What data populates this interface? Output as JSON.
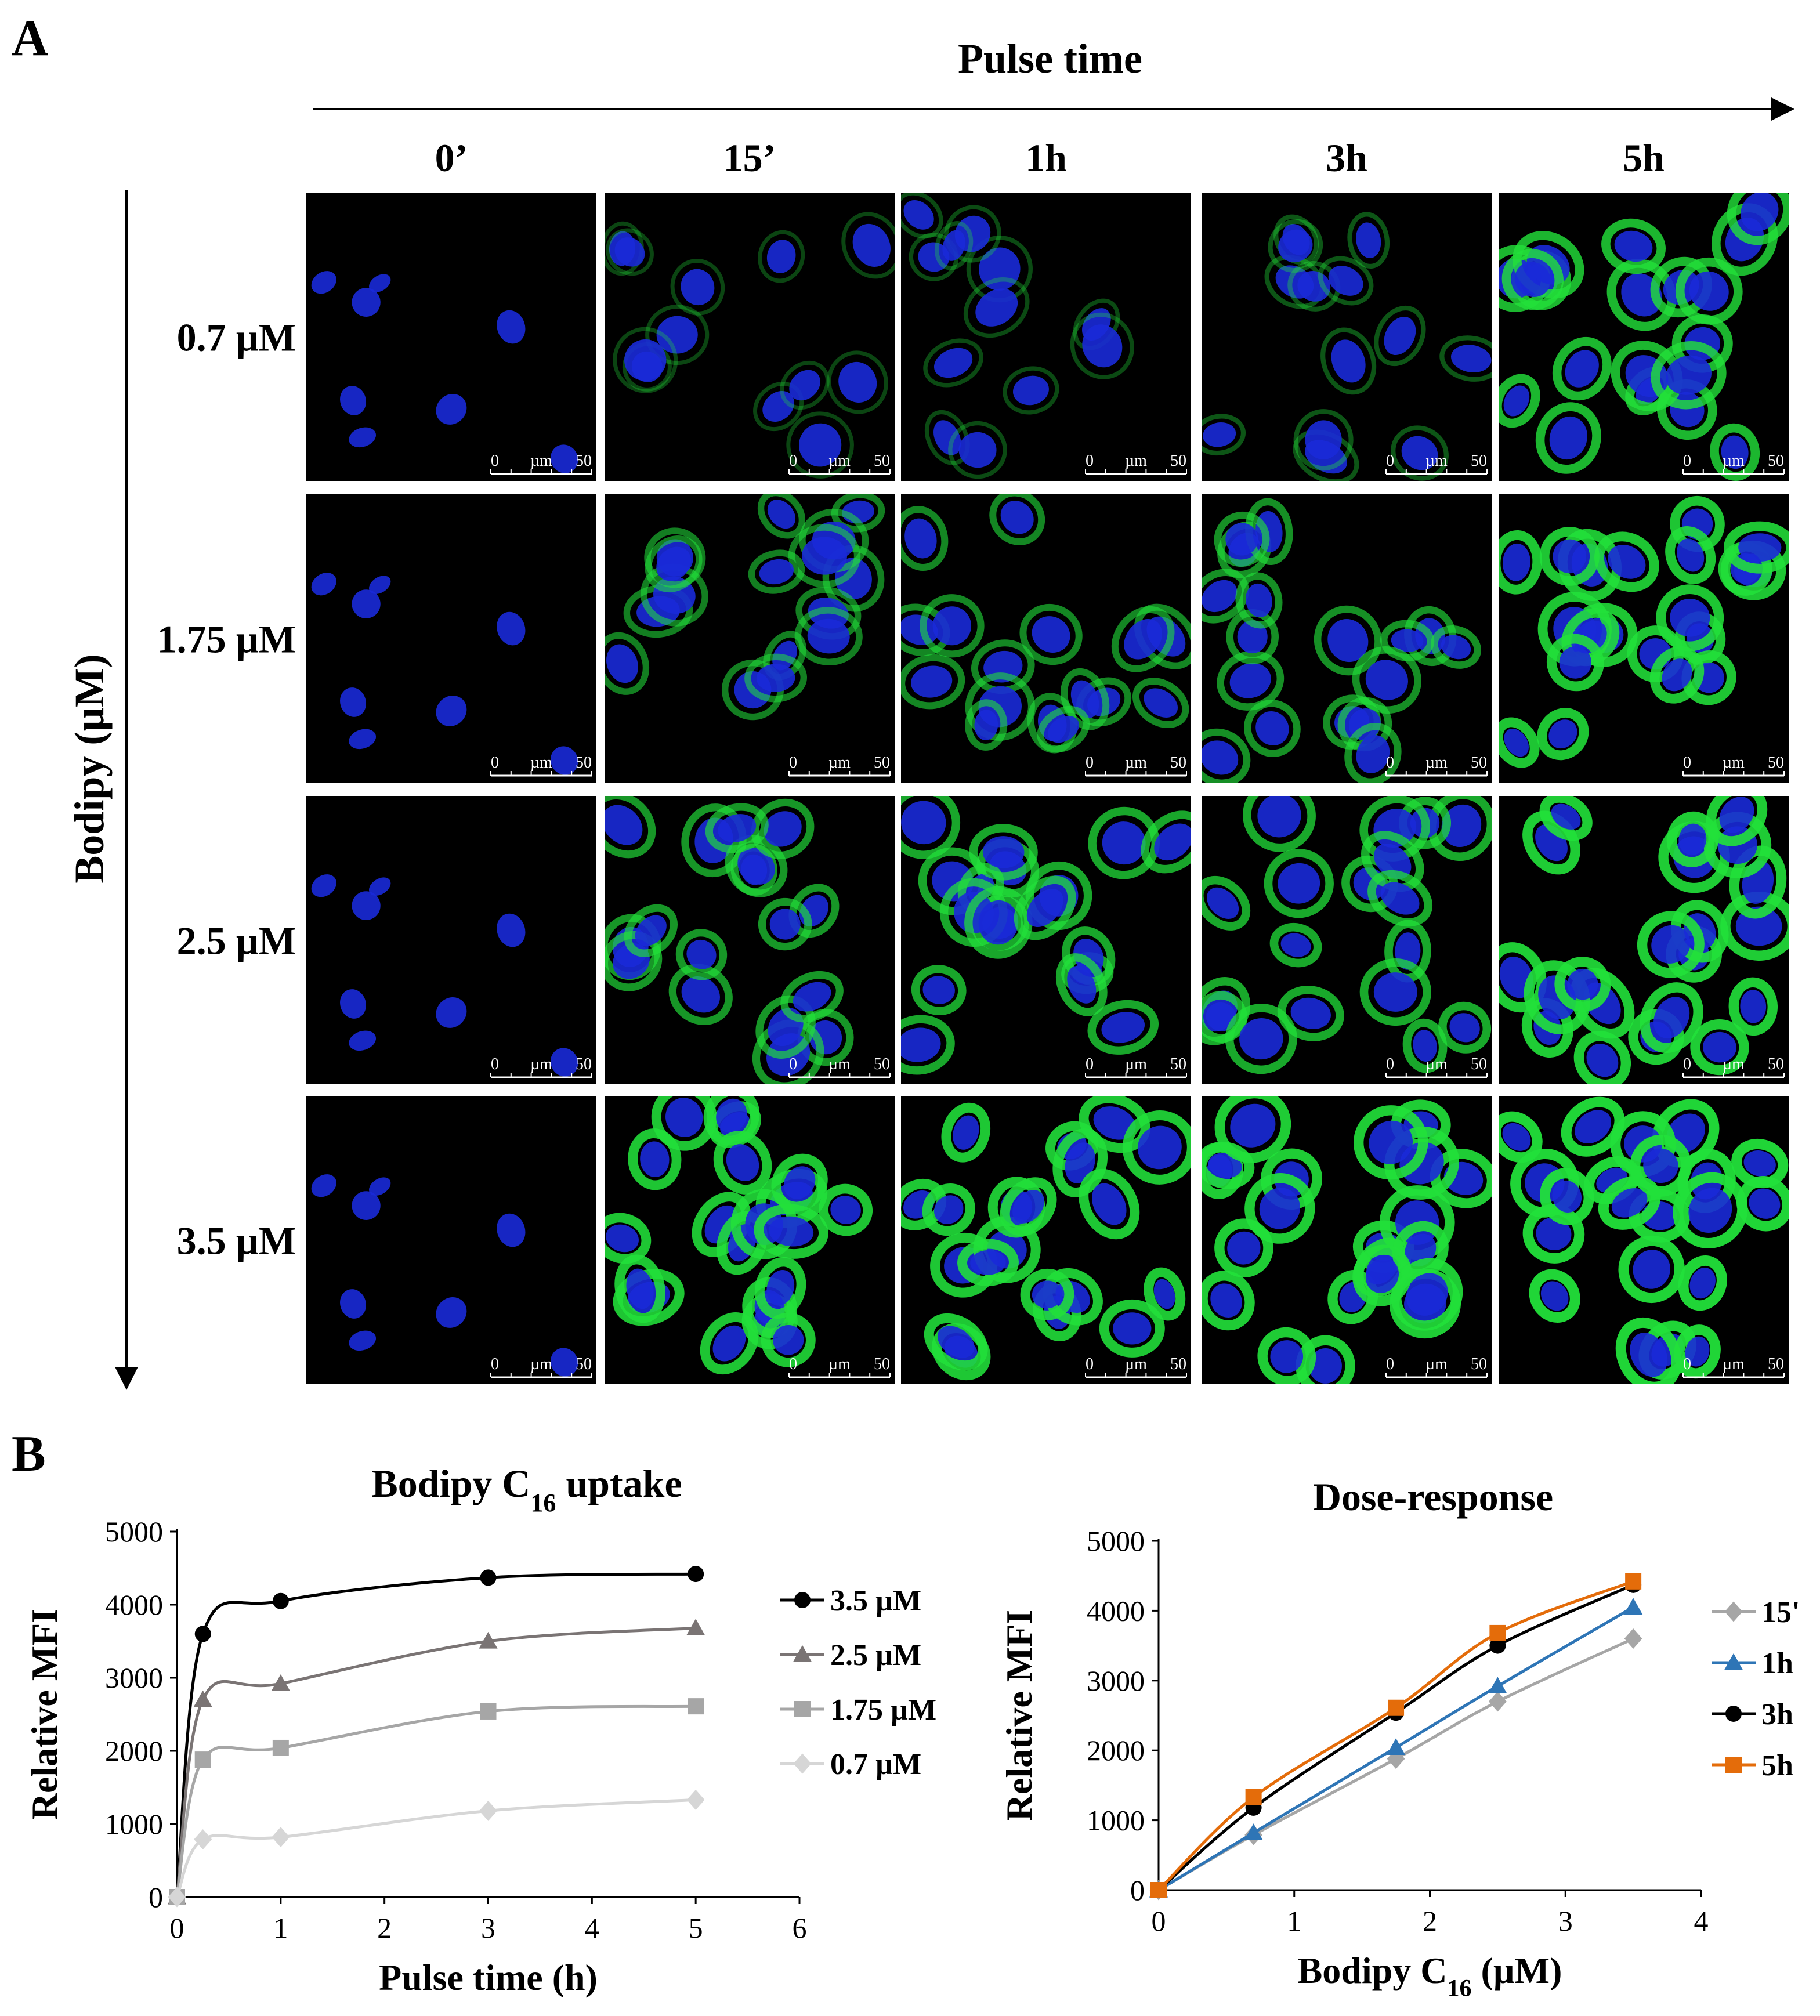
{
  "panel_a": {
    "label": "A",
    "column_axis_title": "Pulse time",
    "row_axis_title": "Bodipy (µM)",
    "columns": [
      "0’",
      "15’",
      "1h",
      "3h",
      "5h"
    ],
    "rows": [
      "0.7 µM",
      "1.75 µM",
      "2.5 µM",
      "3.5 µM"
    ],
    "green_intensity": [
      [
        0.0,
        0.08,
        0.12,
        0.18,
        0.8
      ],
      [
        0.0,
        0.45,
        0.5,
        0.55,
        0.9
      ],
      [
        0.0,
        0.6,
        0.7,
        0.72,
        0.95
      ],
      [
        0.0,
        0.9,
        0.92,
        0.95,
        1.0
      ]
    ],
    "scale_bar": {
      "start": "0",
      "unit": "µm",
      "end": "50"
    },
    "colors": {
      "nucleus": "#1a2ad8",
      "lipid": "#22e03a",
      "background": "#000000"
    }
  },
  "panel_b": {
    "label": "B",
    "chart_data": [
      {
        "type": "line",
        "title": "Bodipy C",
        "title_subscript": "16",
        "title_suffix": " uptake",
        "xlabel": "Pulse time (h)",
        "ylabel": "Relative MFI",
        "xlim": [
          0,
          6
        ],
        "ylim": [
          0,
          5000
        ],
        "xticks": [
          "0",
          "1",
          "2",
          "3",
          "4",
          "5",
          "6"
        ],
        "yticks": [
          "0",
          "1000",
          "2000",
          "3000",
          "4000",
          "5000"
        ],
        "x": [
          0,
          0.25,
          1,
          3,
          5
        ],
        "legend_position": "right",
        "series": [
          {
            "name": "3.5 µM",
            "values": [
              0,
              3600,
              4050,
              4370,
              4420
            ],
            "color": "#000000",
            "marker": "circle"
          },
          {
            "name": "2.5 µM",
            "values": [
              0,
              2700,
              2920,
              3500,
              3680
            ],
            "color": "#7a7474",
            "marker": "triangle"
          },
          {
            "name": "1.75 µM",
            "values": [
              0,
              1880,
              2040,
              2540,
              2610
            ],
            "color": "#a6a6a6",
            "marker": "square"
          },
          {
            "name": "0.7 µM",
            "values": [
              0,
              790,
              820,
              1180,
              1330
            ],
            "color": "#d6d6d6",
            "marker": "diamond"
          }
        ]
      },
      {
        "type": "line",
        "title": "Dose-response",
        "xlabel": "Bodipy C",
        "xlabel_subscript": "16",
        "xlabel_suffix": " (µM)",
        "ylabel": "Relative MFI",
        "xlim": [
          0,
          4
        ],
        "ylim": [
          0,
          5000
        ],
        "xticks": [
          "0",
          "1",
          "2",
          "3",
          "4"
        ],
        "yticks": [
          "0",
          "1000",
          "2000",
          "3000",
          "4000",
          "5000"
        ],
        "x": [
          0,
          0.7,
          1.75,
          2.5,
          3.5
        ],
        "legend_position": "right",
        "series": [
          {
            "name": "15'",
            "values": [
              0,
              790,
              1880,
              2700,
              3600
            ],
            "color": "#a6a6a6",
            "marker": "diamond"
          },
          {
            "name": "1h",
            "values": [
              0,
              820,
              2040,
              2920,
              4050
            ],
            "color": "#2e75b6",
            "marker": "triangle"
          },
          {
            "name": "3h",
            "values": [
              0,
              1180,
              2540,
              3500,
              4370
            ],
            "color": "#000000",
            "marker": "circle"
          },
          {
            "name": "5h",
            "values": [
              0,
              1330,
              2610,
              3680,
              4420
            ],
            "color": "#e46c0a",
            "marker": "square"
          }
        ]
      }
    ]
  }
}
